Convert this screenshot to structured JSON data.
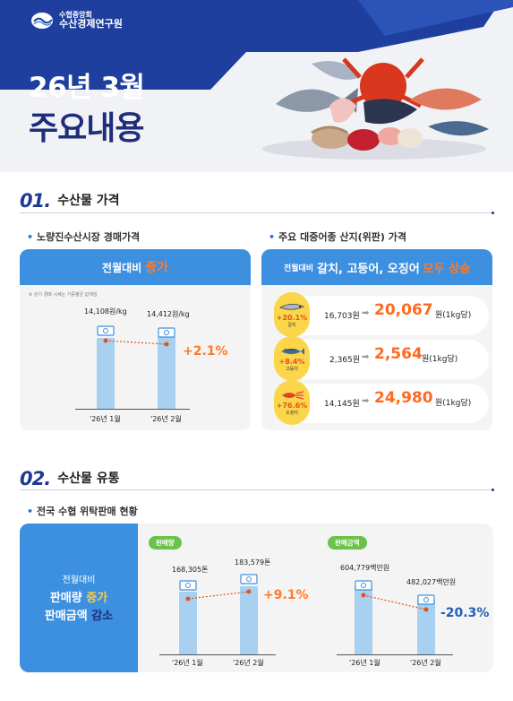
{
  "header": {
    "org_line1": "수협중앙회",
    "org_line2": "수산경제연구원",
    "title_line1": "26년 3월",
    "title_line2": "주요내용"
  },
  "section1": {
    "num": "01.",
    "title": "수산물 가격",
    "left": {
      "bullet": "노량진수산시장 경매가격",
      "head_prefix": "전월대비",
      "head_highlight": "증가",
      "note": "※ 상기 경매 시세는 가중평균 값에임",
      "chart_data": {
        "type": "bar",
        "categories": [
          "'26년 1월",
          "'26년 2월"
        ],
        "values": [
          14108,
          14412
        ],
        "value_labels": [
          "14,108원/kg",
          "14,412원/kg"
        ],
        "change": "+2.1%"
      }
    },
    "right": {
      "bullet": "주요 대중어종 산지(위판) 가격",
      "head_prefix": "전월대비",
      "head_items": "갈치, 고등어, 오징어",
      "head_highlight": "모두 상승",
      "rows": [
        {
          "pct": "+20.1%",
          "fish": "갈치",
          "from": "16,703원",
          "to": "20,067",
          "unit": "원(1kg당)"
        },
        {
          "pct": "+8.4%",
          "fish": "고등어",
          "from": "2,365원",
          "to": "2,564",
          "unit": "원(1kg당)"
        },
        {
          "pct": "+76.6%",
          "fish": "오징어",
          "from": "14,145원",
          "to": "24,980",
          "unit": "원(1kg당)"
        }
      ]
    }
  },
  "section2": {
    "num": "02.",
    "title": "수산물 유통",
    "bullet": "전국 수협 위탁판매 현황",
    "side": {
      "line1": "전월대비",
      "line2a": "판매량",
      "line2b": "증가",
      "line3a": "판매금액",
      "line3b": "감소"
    },
    "volume": {
      "pill": "판매량",
      "chart_data": {
        "type": "bar",
        "categories": [
          "'26년 1월",
          "'26년 2월"
        ],
        "values": [
          168305,
          183579
        ],
        "value_labels": [
          "168,305톤",
          "183,579톤"
        ],
        "change": "+9.1%"
      }
    },
    "amount": {
      "pill": "판매금액",
      "chart_data": {
        "type": "bar",
        "categories": [
          "'26년 1월",
          "'26년 2월"
        ],
        "values": [
          604779,
          482027
        ],
        "value_labels": [
          "604,779백만원",
          "482,027백만원"
        ],
        "change": "-20.3%"
      }
    }
  },
  "colors": {
    "navy": "#1f2d7a",
    "blue": "#3d8fe0",
    "bar": "#a8d0f0",
    "orange": "#ff7a2a",
    "yellow": "#fbd54a",
    "green": "#6bc24a"
  }
}
